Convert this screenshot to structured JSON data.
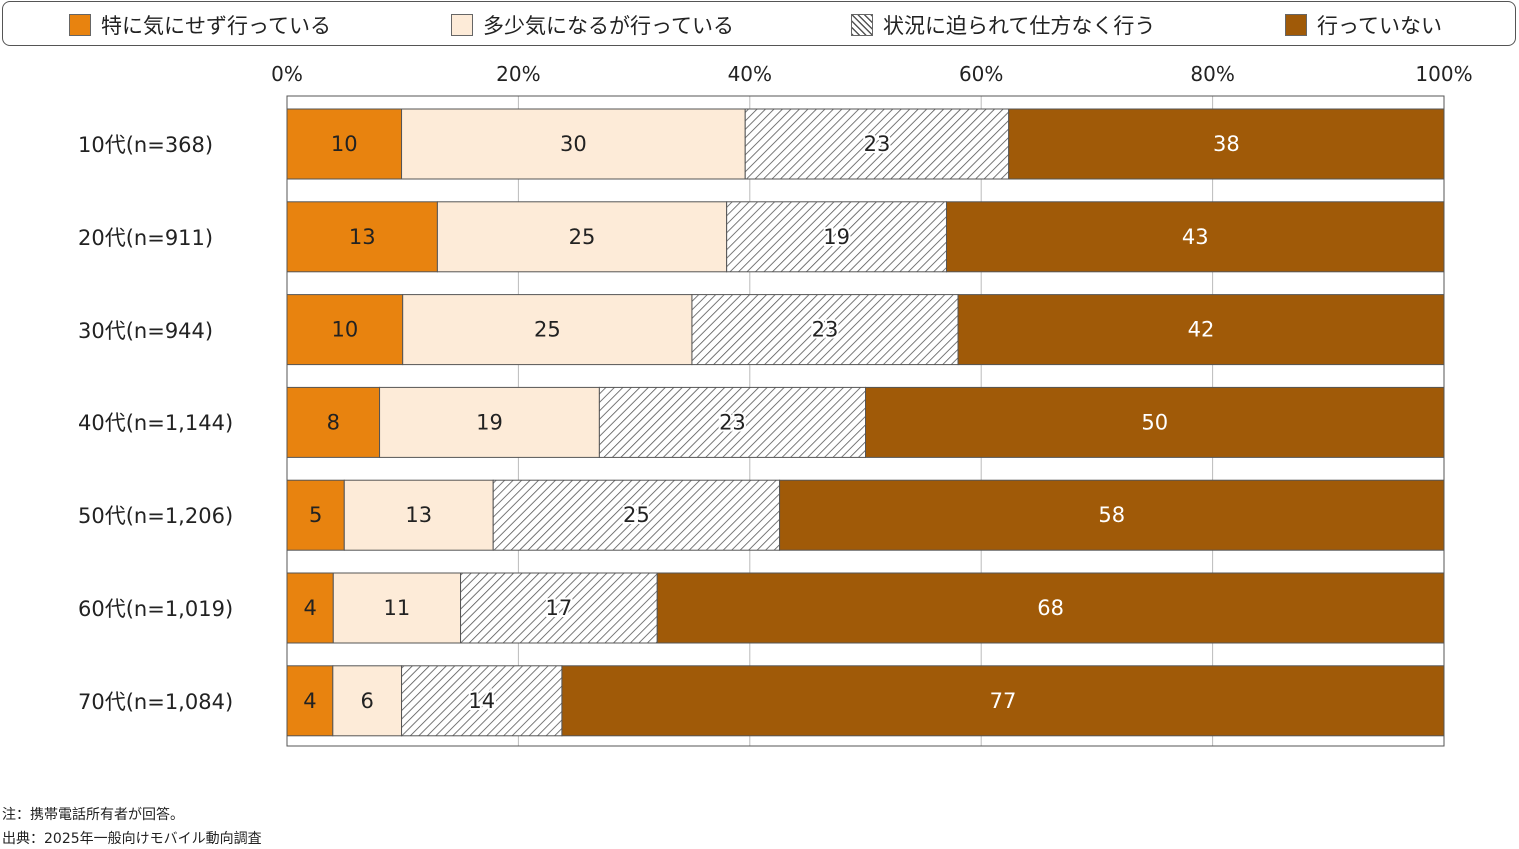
{
  "chart_data": {
    "type": "bar",
    "orientation": "horizontal",
    "stacked": true,
    "categories": [
      "10代(n=368)",
      "20代(n=911)",
      "30代(n=944)",
      "40代(n=1,144)",
      "50代(n=1,206)",
      "60代(n=1,019)",
      "70代(n=1,084)"
    ],
    "series": [
      {
        "name": "特に気にせず行っている",
        "color": "#E8830F",
        "pattern": "solid",
        "label_color": "#222222",
        "values": [
          10,
          13,
          10,
          8,
          5,
          4,
          4
        ]
      },
      {
        "name": "多少気になるが行っている",
        "color": "#FDEBD8",
        "pattern": "solid",
        "label_color": "#222222",
        "values": [
          30,
          25,
          25,
          19,
          13,
          11,
          6
        ]
      },
      {
        "name": "状況に迫られて仕方なく行う",
        "color": "#FFFFFF",
        "pattern": "diagonal-hatch",
        "label_color": "#222222",
        "values": [
          23,
          19,
          23,
          23,
          25,
          17,
          14
        ]
      },
      {
        "name": "行っていない",
        "color": "#A05A08",
        "pattern": "solid",
        "label_color": "#FFFFFF",
        "values": [
          38,
          43,
          42,
          50,
          58,
          68,
          77
        ]
      }
    ],
    "xlim": [
      0,
      100
    ],
    "x_ticks": [
      "0%",
      "20%",
      "40%",
      "60%",
      "80%",
      "100%"
    ],
    "grid": true,
    "legend": "top"
  },
  "notes": {
    "note": "注：携帯電話所有者が回答。",
    "source": "出典：2025年一般向けモバイル動向調査"
  }
}
